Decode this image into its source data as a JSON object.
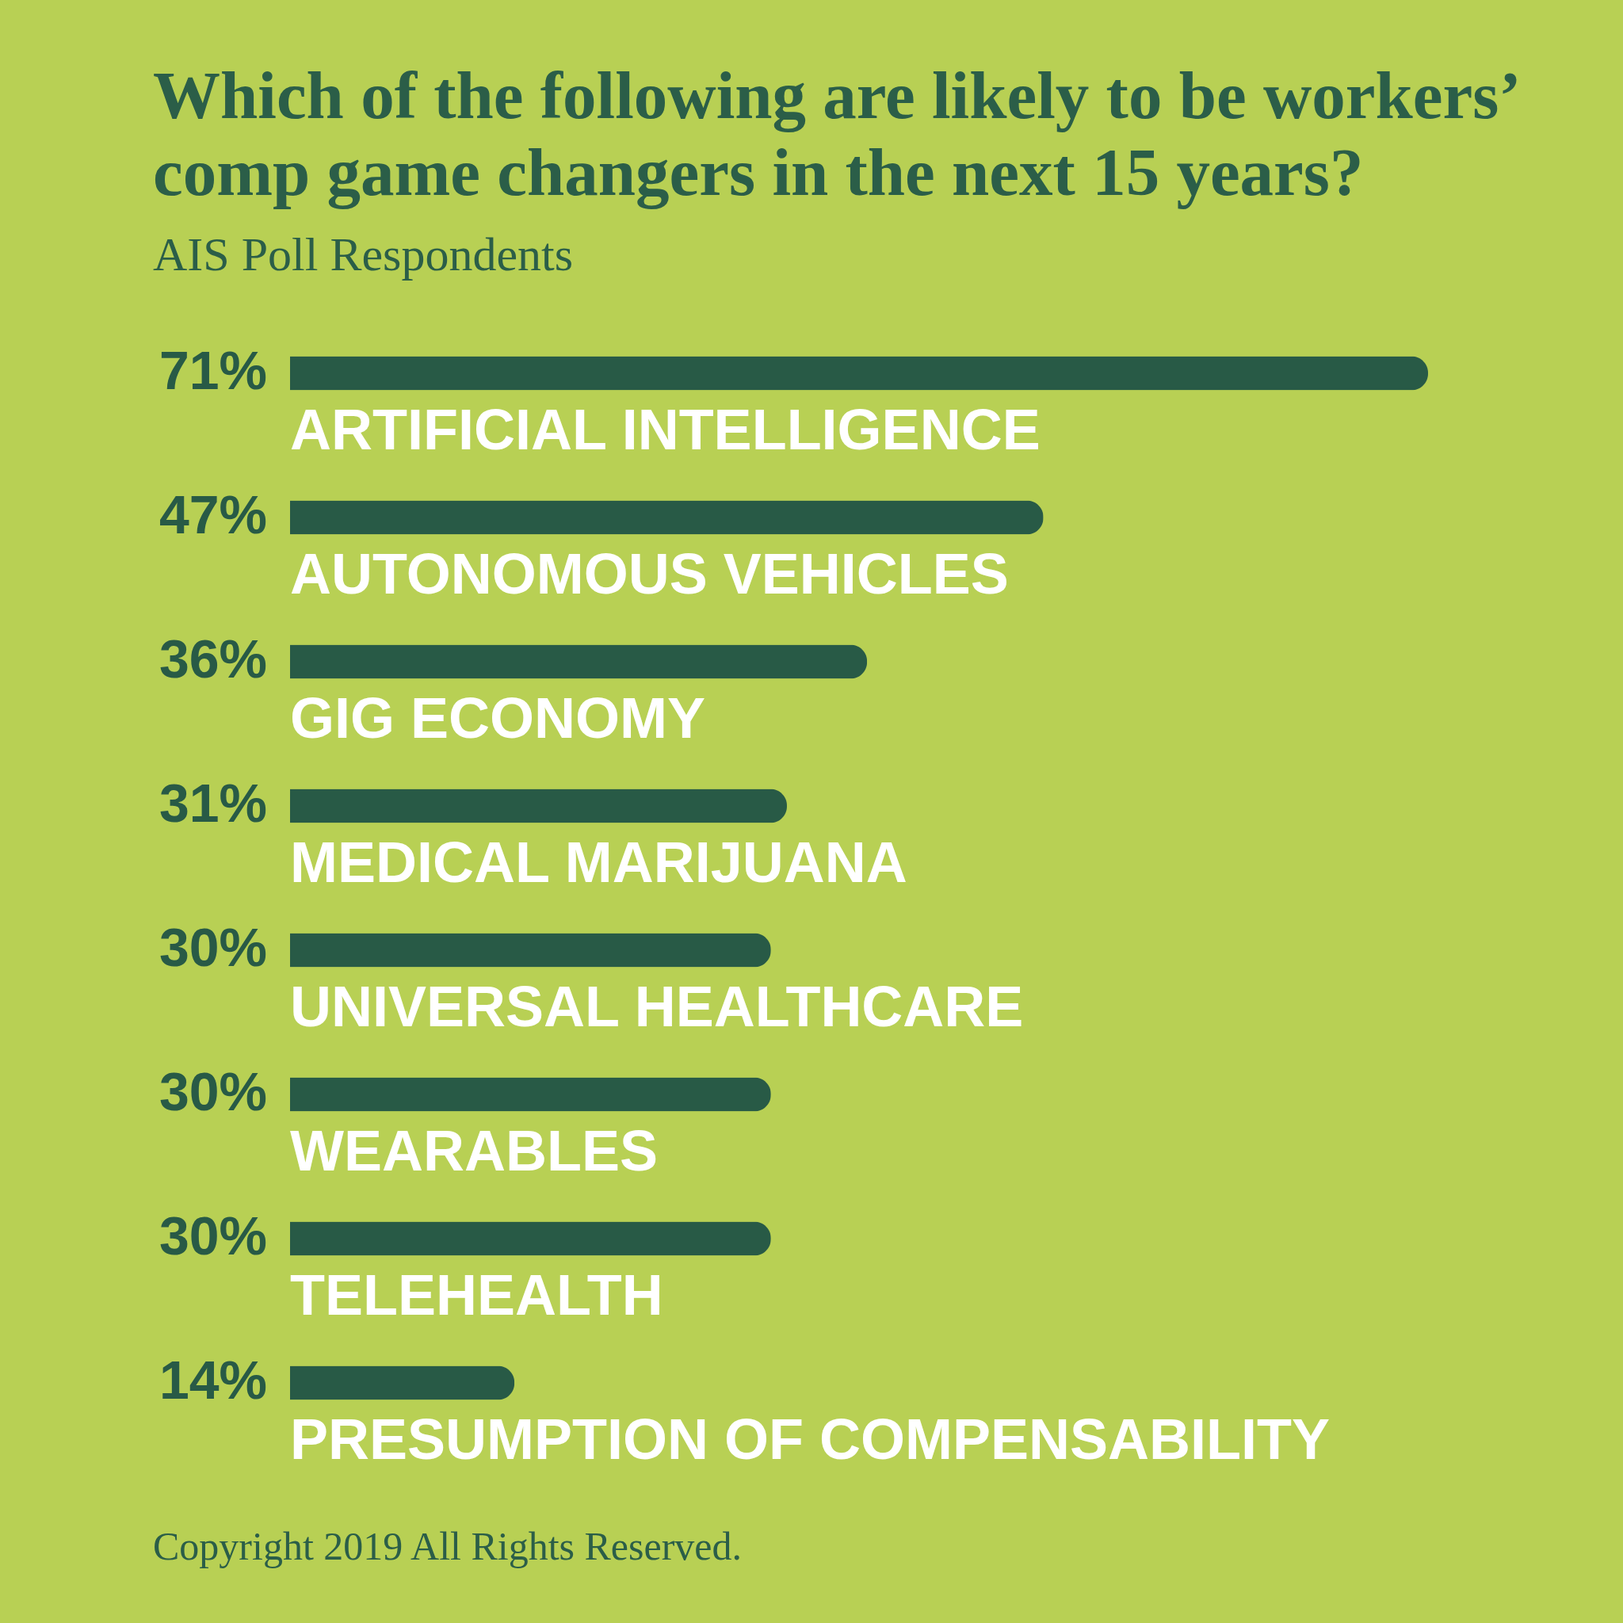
{
  "chart_data": {
    "type": "bar",
    "orientation": "horizontal",
    "title": "Which of the following are likely to be workers’ comp game changers in the next 15 years?",
    "subtitle": "AIS Poll Respondents",
    "categories": [
      "ARTIFICIAL INTELLIGENCE",
      "AUTONOMOUS VEHICLES",
      "GIG ECONOMY",
      "MEDICAL MARIJUANA",
      "UNIVERSAL HEALTHCARE",
      "WEARABLES",
      "TELEHEALTH",
      "PRESUMPTION OF COMPENSABILITY"
    ],
    "values": [
      71,
      47,
      36,
      31,
      30,
      30,
      30,
      14
    ],
    "value_labels": [
      "71%",
      "47%",
      "36%",
      "31%",
      "30%",
      "30%",
      "30%",
      "14%"
    ],
    "color": "#285a46",
    "annotations": [
      "Copyright 2019 All Rights Reserved."
    ]
  }
}
